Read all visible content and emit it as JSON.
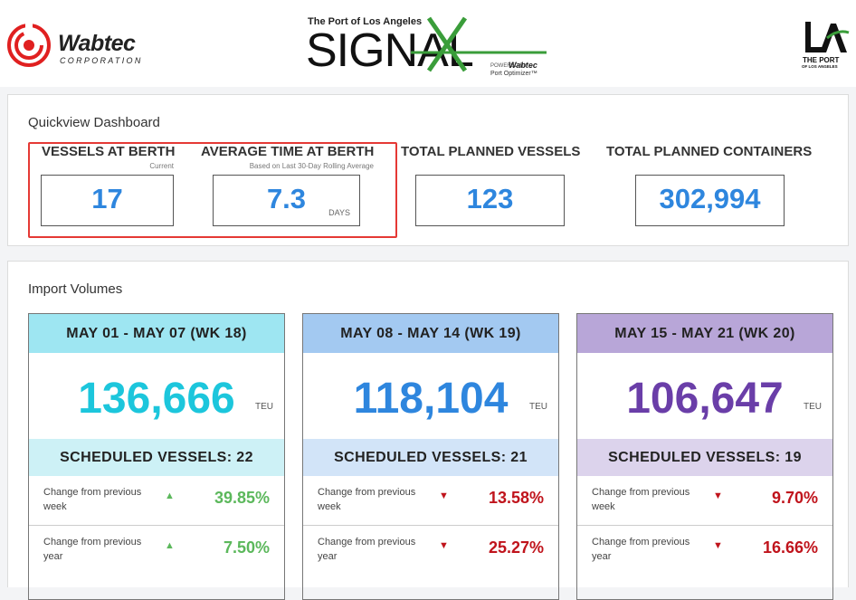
{
  "header": {
    "wabtec_name": "Wabtec",
    "wabtec_corp": "CORPORATION",
    "signal_port": "The Port of Los Angeles",
    "signal_word": "SIGNAL",
    "signal_powered": "POWERED BY",
    "signal_powered_brand": "Wabtec",
    "signal_product": "Port Optimizer™",
    "la_mark": "LA",
    "la_line1": "THE PORT",
    "la_line2": "OF LOS ANGELES"
  },
  "quickview": {
    "title": "Quickview Dashboard",
    "metrics": [
      {
        "label": "VESSELS AT BERTH",
        "sub": "Current",
        "value": "17",
        "unit": ""
      },
      {
        "label": "AVERAGE TIME AT BERTH",
        "sub": "Based on Last 30-Day Rolling Average",
        "value": "7.3",
        "unit": "DAYS"
      },
      {
        "label": "TOTAL PLANNED VESSELS",
        "sub": "",
        "value": "123",
        "unit": ""
      },
      {
        "label": "TOTAL PLANNED CONTAINERS",
        "sub": "",
        "value": "302,994",
        "unit": ""
      }
    ]
  },
  "imports": {
    "title": "Import Volumes",
    "cards": [
      {
        "period": "MAY 01 - MAY 07 (WK 18)",
        "volume": "136,666",
        "unit": "TEU",
        "scheduled": "SCHEDULED VESSELS: 22",
        "week_label": "Change from previous week",
        "week_change": "39.85%",
        "week_direction": "up",
        "year_label": "Change from previous year",
        "year_change": "7.50%",
        "year_direction": "up",
        "head_color": "#9ee6f2",
        "sched_color": "#cdf1f6",
        "value_color": "#1cc6dc"
      },
      {
        "period": "MAY 08 - MAY 14 (WK 19)",
        "volume": "118,104",
        "unit": "TEU",
        "scheduled": "SCHEDULED VESSELS: 21",
        "week_label": "Change from previous week",
        "week_change": "13.58%",
        "week_direction": "down",
        "year_label": "Change from previous year",
        "year_change": "25.27%",
        "year_direction": "down",
        "head_color": "#a3c9f1",
        "sched_color": "#d2e4f8",
        "value_color": "#2e86de"
      },
      {
        "period": "MAY 15 - MAY 21 (WK 20)",
        "volume": "106,647",
        "unit": "TEU",
        "scheduled": "SCHEDULED VESSELS: 19",
        "week_label": "Change from previous week",
        "week_change": "9.70%",
        "week_direction": "down",
        "year_label": "Change from previous year",
        "year_change": "16.66%",
        "year_direction": "down",
        "head_color": "#b8a6d8",
        "sched_color": "#dcd3ec",
        "value_color": "#6a3ea8"
      }
    ]
  }
}
